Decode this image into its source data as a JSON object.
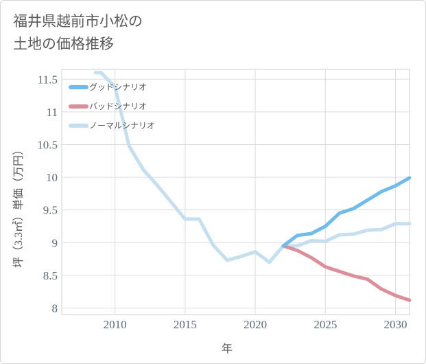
{
  "title_lines": [
    "福井県越前市小松の",
    "土地の価格推移"
  ],
  "chart_data": {
    "type": "line",
    "xlabel": "年",
    "ylabel": "坪（3.3㎡）単価（万円）",
    "xlim": [
      2006.2,
      2031
    ],
    "ylim": [
      7.9,
      11.65
    ],
    "x_ticks": [
      2010,
      2015,
      2020,
      2025,
      2030
    ],
    "y_ticks": [
      8,
      8.5,
      9,
      9.5,
      10,
      10.5,
      11,
      11.5
    ],
    "grid": true,
    "legend_position": "top-left",
    "series": [
      {
        "name": "グッドシナリオ",
        "color": "#6cbcef",
        "x": [
          2022,
          2023,
          2024,
          2025,
          2026,
          2027,
          2028,
          2029,
          2030,
          2031
        ],
        "y": [
          8.95,
          9.11,
          9.14,
          9.25,
          9.45,
          9.52,
          9.65,
          9.78,
          9.87,
          9.99
        ]
      },
      {
        "name": "バッドシナリオ",
        "color": "#df8e99",
        "x": [
          2022,
          2023,
          2024,
          2025,
          2026,
          2027,
          2028,
          2029,
          2030,
          2031
        ],
        "y": [
          8.95,
          8.88,
          8.77,
          8.63,
          8.56,
          8.49,
          8.44,
          8.29,
          8.19,
          8.12
        ]
      },
      {
        "name": "ノーマルシナリオ",
        "color": "#c3dff0",
        "x": [
          2008.6,
          2009,
          2010,
          2011,
          2012,
          2013,
          2014,
          2015,
          2016,
          2017,
          2018,
          2019,
          2020,
          2021,
          2022,
          2023,
          2024,
          2025,
          2026,
          2027,
          2028,
          2029,
          2030,
          2031
        ],
        "y": [
          11.6,
          11.6,
          11.38,
          10.48,
          10.12,
          9.88,
          9.62,
          9.36,
          9.36,
          8.96,
          8.73,
          8.79,
          8.86,
          8.7,
          8.95,
          8.95,
          9.03,
          9.02,
          9.12,
          9.13,
          9.19,
          9.2,
          9.29,
          9.29
        ]
      }
    ]
  }
}
